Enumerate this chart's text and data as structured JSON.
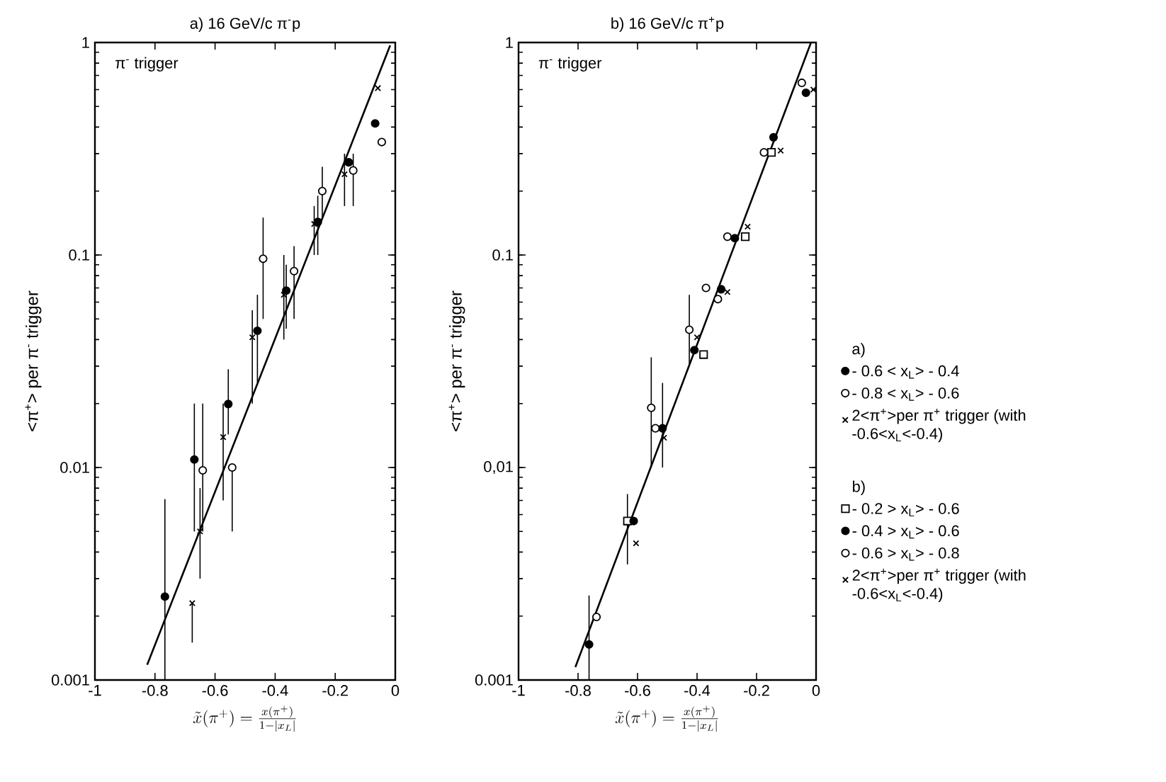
{
  "chart_data": [
    {
      "type": "scatter",
      "title": "a) 16 GeV/c π$^{-}$p",
      "xlabel": "\\tilde{x}(\\pi^{+})=\\frac{x(\\pi^{+})}{1-|x_{L}|}",
      "ylabel": "<π$^{+}$> per π$^{-}$ trigger",
      "legend_title": "a)",
      "annotations": [
        "π$^{-}$ trigger"
      ],
      "log": "y",
      "legend": "right",
      "xlim": [
        -1,
        0
      ],
      "xticks": [
        -1,
        -0.8,
        -0.6,
        -0.4,
        -0.2,
        0
      ],
      "ylim": [
        0.001,
        1
      ],
      "yticks": [
        0.001,
        0.01,
        0.1,
        1
      ],
      "series": [
        {
          "name": "- 0.6 < x$_{L}$> - 0.4",
          "color": "#000000",
          "marker": "circle",
          "x": [
            -0.767,
            -0.669,
            -0.556,
            -0.459,
            -0.363,
            -0.258,
            -0.155,
            -0.067
          ],
          "values": [
            0.00247,
            0.0109,
            0.0199,
            0.044,
            0.068,
            0.143,
            0.273,
            0.416
          ],
          "errors": [
            [
              0.001,
              0.0071
            ],
            [
              0.005,
              0.02
            ],
            [
              0.0143,
              0.029
            ],
            [
              0.025,
              0.065
            ],
            [
              0.045,
              0.09
            ],
            [
              0.1,
              0.19
            ],
            null,
            null
          ]
        },
        {
          "name": "- 0.8 < x$_{L}$> - 0.6",
          "color": "#ffffff",
          "marker": "circle",
          "x": [
            -0.641,
            -0.543,
            -0.44,
            -0.337,
            -0.243,
            -0.14,
            -0.045
          ],
          "values": [
            0.0097,
            0.01,
            0.096,
            0.084,
            0.2,
            0.25,
            0.34
          ],
          "errors": [
            [
              0.005,
              0.02
            ],
            [
              0.005,
              0.01
            ],
            [
              0.05,
              0.15
            ],
            [
              0.05,
              0.11
            ],
            [
              0.15,
              0.26
            ],
            [
              0.17,
              0.3
            ],
            null
          ]
        },
        {
          "name": "2<π$^{+}$>per π$^{+}$ trigger (with -0.6<x$_{L}$<-0.4)",
          "color": "#000000",
          "marker": "cross",
          "x": [
            -0.676,
            -0.65,
            -0.573,
            -0.476,
            -0.371,
            -0.27,
            -0.169,
            -0.058
          ],
          "values": [
            0.0023,
            0.005,
            0.0139,
            0.041,
            0.065,
            0.14,
            0.24,
            0.61
          ],
          "errors": [
            [
              0.0015,
              0.0023
            ],
            [
              0.003,
              0.008
            ],
            [
              0.007,
              0.02
            ],
            [
              0.02,
              0.055
            ],
            [
              0.04,
              0.1
            ],
            [
              0.1,
              0.17
            ],
            [
              0.17,
              0.3
            ],
            null
          ]
        },
        {
          "type": "line",
          "color": "#000000",
          "marker": "none",
          "x": [
            -0.826,
            -0.017
          ],
          "values": [
            0.00118,
            0.97
          ]
        }
      ]
    },
    {
      "type": "scatter",
      "title": "b) 16 GeV/c π$^{+}$p",
      "xlabel": "\\tilde{x}(\\pi^{+})=\\frac{x(\\pi^{+})}{1-|x_{L}|}",
      "ylabel": "<π$^{+}$> per π$^{-}$ trigger",
      "legend_title": "b)",
      "annotations": [
        "π$^{-}$ trigger"
      ],
      "log": "y",
      "legend": "right",
      "xlim": [
        -1,
        0
      ],
      "xticks": [
        -1,
        -0.8,
        -0.6,
        -0.4,
        -0.2,
        0
      ],
      "ylim": [
        0.001,
        1
      ],
      "yticks": [
        0.001,
        {
          "value": 0.01,
          "label": "0,01"
        },
        0.1,
        1
      ],
      "series": [
        {
          "name": "- 0.2 > x$_{L}$> - 0.6",
          "color": "#ffffff",
          "marker": "square",
          "x": [
            -0.634,
            -0.378,
            -0.238,
            -0.15
          ],
          "values": [
            0.0056,
            0.034,
            0.122,
            0.304
          ],
          "errors": [
            [
              0.0035,
              0.0075
            ],
            null,
            null,
            null
          ]
        },
        {
          "name": "- 0.4 > x$_{L}$> - 0.6",
          "color": "#000000",
          "marker": "circle",
          "x": [
            -0.763,
            -0.613,
            -0.516,
            -0.409,
            -0.319,
            -0.273,
            -0.143,
            -0.034
          ],
          "values": [
            0.00147,
            0.0056,
            0.0153,
            0.0357,
            0.069,
            0.12,
            0.358,
            0.58
          ],
          "errors": [
            [
              0.001,
              0.0025
            ],
            null,
            [
              0.01,
              0.025
            ],
            null,
            null,
            null,
            null,
            null
          ]
        },
        {
          "name": "- 0.6 > x$_{L}$> - 0.8",
          "color": "#ffffff",
          "marker": "circle",
          "x": [
            -0.738,
            -0.554,
            -0.54,
            -0.426,
            -0.37,
            -0.33,
            -0.298,
            -0.175,
            -0.048
          ],
          "values": [
            0.00198,
            0.0191,
            0.0153,
            0.0445,
            0.07,
            0.062,
            0.122,
            0.304,
            0.646
          ],
          "errors": [
            null,
            [
              0.01,
              0.033
            ],
            null,
            [
              0.03,
              0.065
            ],
            null,
            null,
            null,
            null,
            null
          ]
        },
        {
          "name": "2<π$^{+}$>per π$^{+}$ trigger (with -0.6<x$_{L}$<-0.4)",
          "color": "#000000",
          "marker": "cross",
          "x": [
            -0.605,
            -0.511,
            -0.4,
            -0.298,
            -0.23,
            -0.119,
            -0.009
          ],
          "values": [
            0.0044,
            0.0138,
            0.041,
            0.067,
            0.136,
            0.31,
            0.6
          ]
        },
        {
          "type": "line",
          "color": "#000000",
          "marker": "none",
          "x": [
            -0.809,
            -0.017
          ],
          "values": [
            0.00115,
            1.0
          ]
        }
      ]
    }
  ]
}
